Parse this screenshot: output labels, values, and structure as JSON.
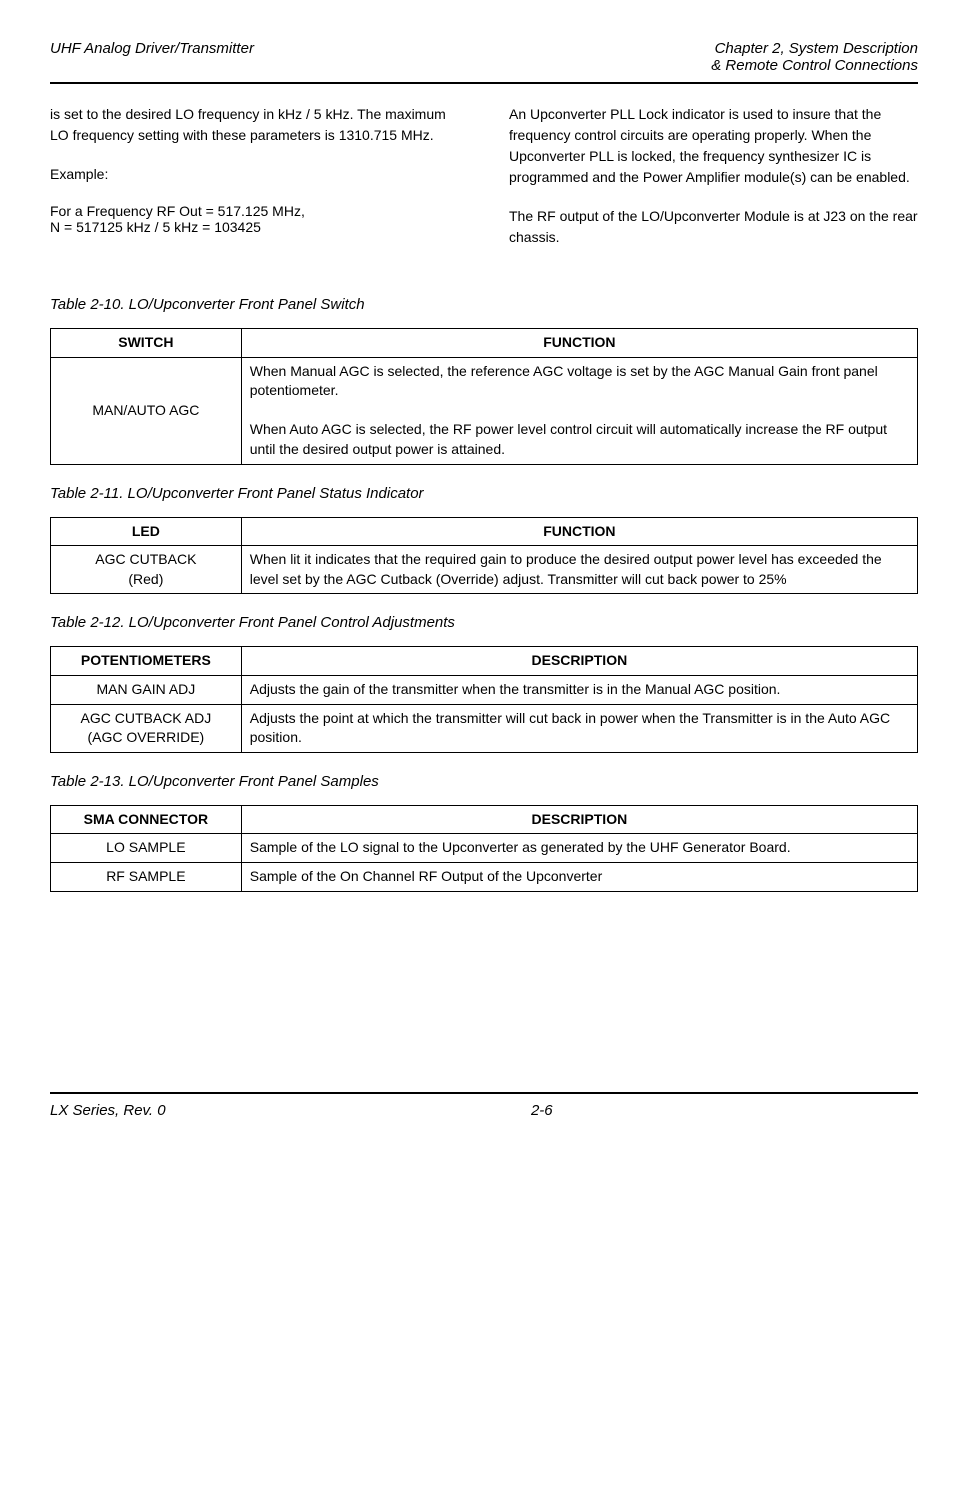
{
  "header": {
    "left": "UHF Analog Driver/Transmitter",
    "right_line1": "Chapter 2, System Description",
    "right_line2": "& Remote Control Connections"
  },
  "left_column": {
    "para1": "is set to the desired LO frequency in kHz / 5 kHz.  The maximum LO frequency setting with these parameters is 1310.715 MHz.",
    "example_label": "Example:",
    "example_line1": "For a Frequency RF Out = 517.125 MHz,",
    "example_line2": "N = 517125 kHz / 5 kHz = 103425"
  },
  "right_column": {
    "para1": "An Upconverter PLL Lock indicator is used to insure that the frequency control circuits are operating properly.  When the Upconverter PLL is locked, the frequency synthesizer IC is programmed and the Power Amplifier module(s) can be enabled.",
    "para2": "The RF output of the LO/Upconverter Module is at J23 on the rear chassis."
  },
  "tables": {
    "t10": {
      "caption": "Table 2-10. LO/Upconverter Front Panel Switch",
      "headers": [
        "SWITCH",
        "FUNCTION"
      ],
      "rows": [
        [
          "MAN/AUTO AGC",
          "When Manual AGC is selected, the reference AGC voltage is set by the AGC Manual Gain front panel potentiometer.\n\nWhen Auto AGC is selected, the RF power level control circuit will automatically increase the RF output until the desired output power is attained."
        ]
      ]
    },
    "t11": {
      "caption": "Table 2-11. LO/Upconverter Front Panel Status Indicator",
      "headers": [
        "LED",
        "FUNCTION"
      ],
      "rows": [
        [
          "AGC CUTBACK\n(Red)",
          "When lit it indicates that the required gain to produce the desired output power level has exceeded the level set by the AGC Cutback (Override) adjust.  Transmitter will cut back power to 25%"
        ]
      ]
    },
    "t12": {
      "caption": "Table 2-12. LO/Upconverter Front Panel Control Adjustments",
      "headers": [
        "POTENTIOMETERS",
        "DESCRIPTION"
      ],
      "rows": [
        [
          "MAN GAIN ADJ",
          "Adjusts the gain of the transmitter when the transmitter is in the Manual AGC position."
        ],
        [
          "AGC CUTBACK ADJ\n(AGC OVERRIDE)",
          "Adjusts the point at which the transmitter will cut back in power when the Transmitter is in the Auto AGC position."
        ]
      ]
    },
    "t13": {
      "caption": "Table 2-13. LO/Upconverter Front Panel Samples",
      "headers": [
        "SMA CONNECTOR",
        "DESCRIPTION"
      ],
      "rows": [
        [
          "LO SAMPLE",
          "Sample of the LO signal to the Upconverter as generated by the UHF Generator Board."
        ],
        [
          "RF SAMPLE",
          "Sample of the On Channel RF Output of the Upconverter"
        ]
      ]
    }
  },
  "footer": {
    "left": "LX Series, Rev. 0",
    "center": "2-6"
  }
}
